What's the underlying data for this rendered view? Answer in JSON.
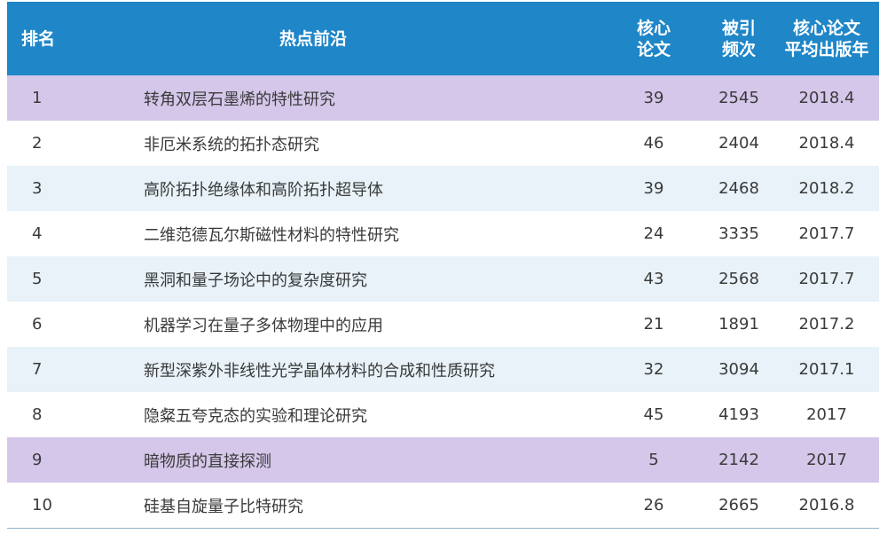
{
  "header": {
    "rank": "排名",
    "topic": "热点前沿",
    "core_line1": "核心",
    "core_line2": "论文",
    "cited_line1": "被引",
    "cited_line2": "频次",
    "year_line1": "核心论文",
    "year_line2": "平均出版年"
  },
  "colors": {
    "header_bg": "#1f86c8",
    "alt_row_bg": "#e8f2f8",
    "highlight_row_bg": "#d4c7ea"
  },
  "rows": [
    {
      "rank": "1",
      "topic": "转角双层石墨烯的特性研究",
      "core": "39",
      "cited": "2545",
      "year": "2018.4",
      "style": "highlight"
    },
    {
      "rank": "2",
      "topic": "非厄米系统的拓扑态研究",
      "core": "46",
      "cited": "2404",
      "year": "2018.4",
      "style": "plain"
    },
    {
      "rank": "3",
      "topic": "高阶拓扑绝缘体和高阶拓扑超导体",
      "core": "39",
      "cited": "2468",
      "year": "2018.2",
      "style": "alt"
    },
    {
      "rank": "4",
      "topic": "二维范德瓦尔斯磁性材料的特性研究",
      "core": "24",
      "cited": "3335",
      "year": "2017.7",
      "style": "plain"
    },
    {
      "rank": "5",
      "topic": "黑洞和量子场论中的复杂度研究",
      "core": "43",
      "cited": "2568",
      "year": "2017.7",
      "style": "alt"
    },
    {
      "rank": "6",
      "topic": "机器学习在量子多体物理中的应用",
      "core": "21",
      "cited": "1891",
      "year": "2017.2",
      "style": "plain"
    },
    {
      "rank": "7",
      "topic": "新型深紫外非线性光学晶体材料的合成和性质研究",
      "core": "32",
      "cited": "3094",
      "year": "2017.1",
      "style": "alt"
    },
    {
      "rank": "8",
      "topic": "隐粲五夸克态的实验和理论研究",
      "core": "45",
      "cited": "4193",
      "year": "2017",
      "style": "plain"
    },
    {
      "rank": "9",
      "topic": "暗物质的直接探测",
      "core": "5",
      "cited": "2142",
      "year": "2017",
      "style": "highlight"
    },
    {
      "rank": "10",
      "topic": "硅基自旋量子比特研究",
      "core": "26",
      "cited": "2665",
      "year": "2016.8",
      "style": "plain"
    }
  ]
}
